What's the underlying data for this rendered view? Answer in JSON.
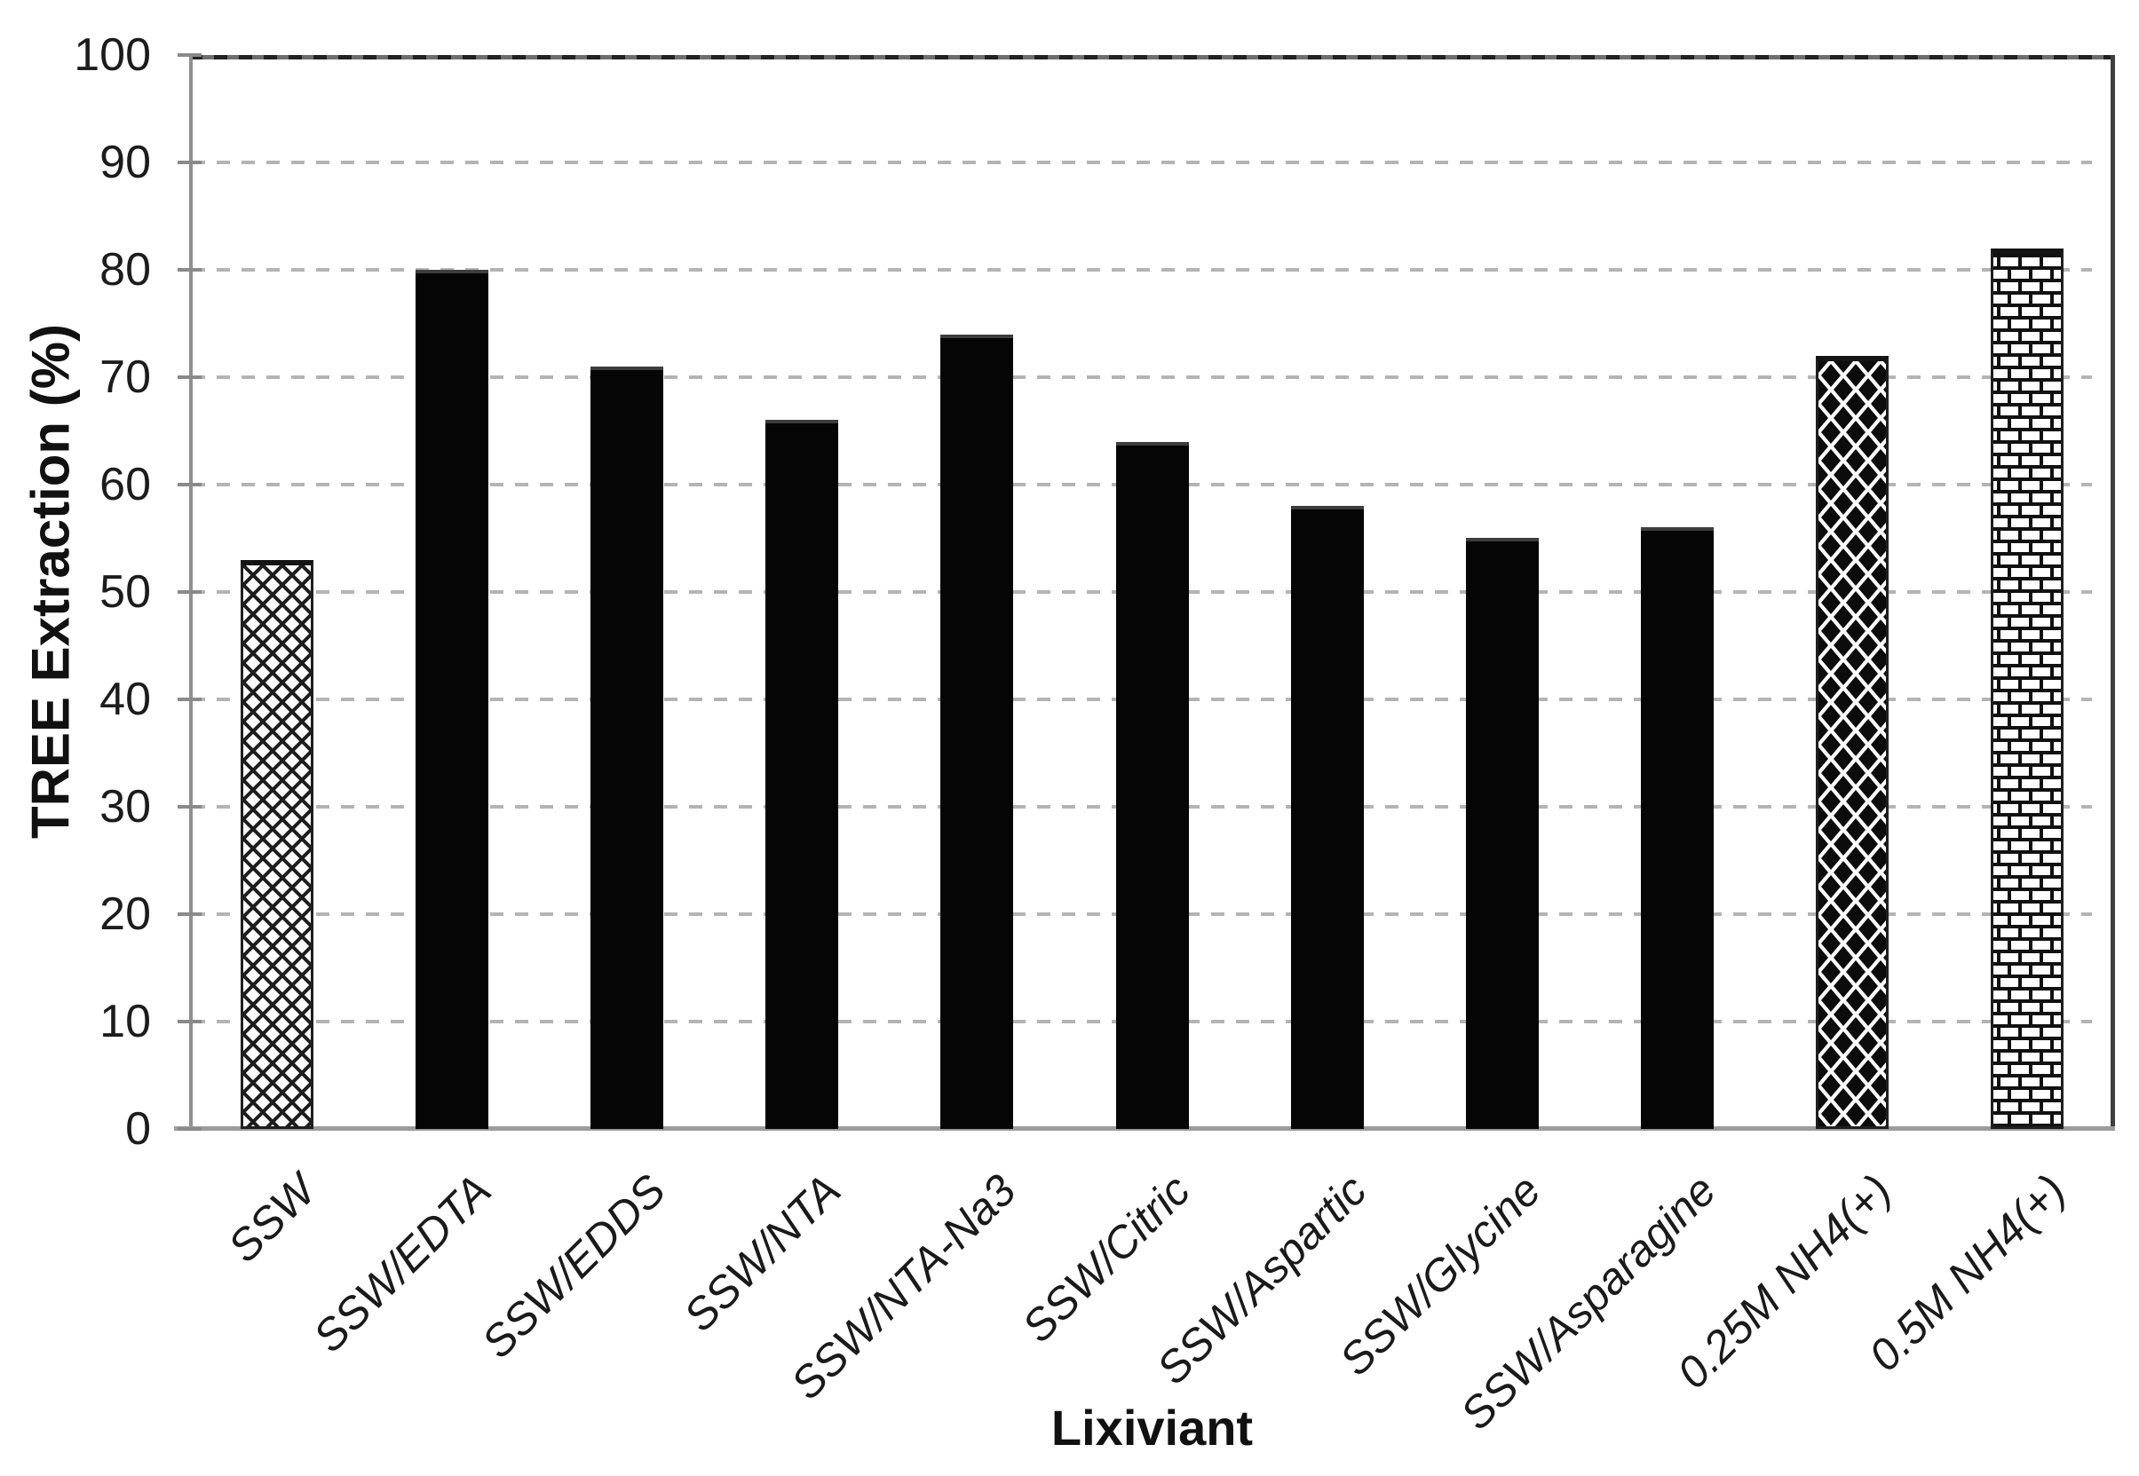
{
  "chart_data": {
    "type": "bar",
    "xlabel": "Lixiviant",
    "ylabel": "TREE Extraction (%)",
    "ylim": [
      0,
      100
    ],
    "yticks": [
      0,
      10,
      20,
      30,
      40,
      50,
      60,
      70,
      80,
      90,
      100
    ],
    "grid": {
      "horizontal": true,
      "style": "dashed"
    },
    "legend": {
      "visible": false
    },
    "categories": [
      "SSW",
      "SSW/EDTA",
      "SSW/EDDS",
      "SSW/NTA",
      "SSW/NTA-Na3",
      "SSW/Citric",
      "SSW/Aspartic",
      "SSW/Glycine",
      "SSW/Asparagine",
      "0.25M NH4(+)",
      "0.5M NH4(+)"
    ],
    "values": [
      53,
      80,
      71,
      66,
      74,
      64,
      58,
      55,
      56,
      72,
      82
    ],
    "bar_styles": [
      "crosshatch",
      "solid",
      "solid",
      "solid",
      "solid",
      "solid",
      "solid",
      "solid",
      "solid",
      "diamond",
      "brick"
    ],
    "colors": {
      "bar_fill": "#050505",
      "pattern_ink": "#111111",
      "pattern_background": "#ffffff",
      "gridline": "#b4b4b4",
      "axis_line": "#8f8f8f",
      "plot_border": "#3f3f3f",
      "text": "#1a1a1a",
      "background": "#ffffff"
    }
  }
}
